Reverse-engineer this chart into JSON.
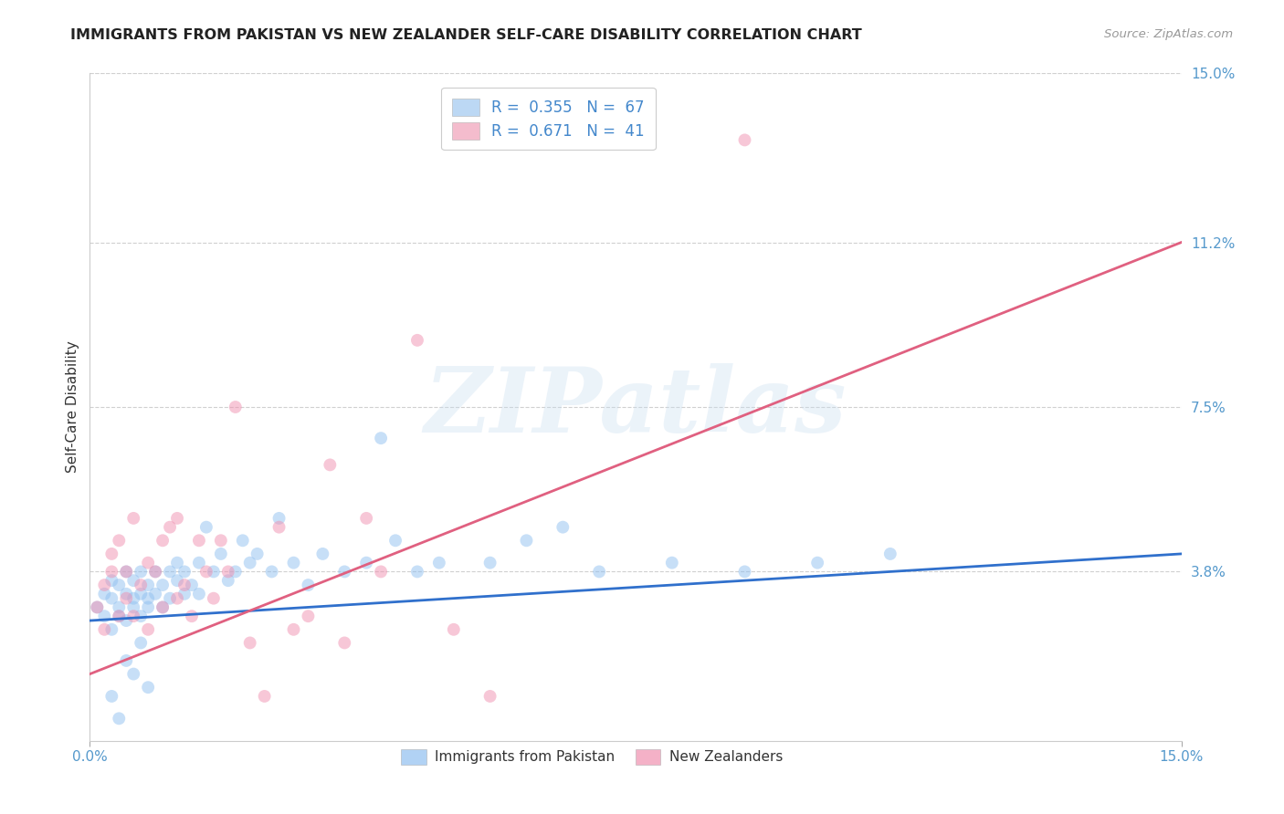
{
  "title": "IMMIGRANTS FROM PAKISTAN VS NEW ZEALANDER SELF-CARE DISABILITY CORRELATION CHART",
  "source": "Source: ZipAtlas.com",
  "ylabel": "Self-Care Disability",
  "xlim": [
    0.0,
    0.15
  ],
  "ylim": [
    0.0,
    0.15
  ],
  "ytick_positions_right": [
    0.038,
    0.075,
    0.112,
    0.15
  ],
  "ytick_labels_right": [
    "3.8%",
    "7.5%",
    "11.2%",
    "15.0%"
  ],
  "grid_color": "#d0d0d0",
  "watermark_text": "ZIPatlas",
  "legend_entries": [
    {
      "label": "Immigrants from Pakistan",
      "color": "#a0c8f0",
      "R": 0.355,
      "N": 67
    },
    {
      "label": "New Zealanders",
      "color": "#f0a0b8",
      "R": 0.671,
      "N": 41
    }
  ],
  "blue_scatter_x": [
    0.001,
    0.002,
    0.002,
    0.003,
    0.003,
    0.003,
    0.004,
    0.004,
    0.004,
    0.005,
    0.005,
    0.005,
    0.006,
    0.006,
    0.006,
    0.007,
    0.007,
    0.007,
    0.008,
    0.008,
    0.008,
    0.009,
    0.009,
    0.01,
    0.01,
    0.011,
    0.011,
    0.012,
    0.012,
    0.013,
    0.013,
    0.014,
    0.015,
    0.015,
    0.016,
    0.017,
    0.018,
    0.019,
    0.02,
    0.021,
    0.022,
    0.023,
    0.025,
    0.026,
    0.028,
    0.03,
    0.032,
    0.035,
    0.038,
    0.04,
    0.042,
    0.045,
    0.048,
    0.055,
    0.06,
    0.065,
    0.07,
    0.08,
    0.09,
    0.1,
    0.11,
    0.003,
    0.004,
    0.005,
    0.006,
    0.007,
    0.008
  ],
  "blue_scatter_y": [
    0.03,
    0.028,
    0.033,
    0.032,
    0.036,
    0.025,
    0.03,
    0.035,
    0.028,
    0.033,
    0.038,
    0.027,
    0.032,
    0.036,
    0.03,
    0.033,
    0.038,
    0.028,
    0.032,
    0.035,
    0.03,
    0.038,
    0.033,
    0.03,
    0.035,
    0.038,
    0.032,
    0.036,
    0.04,
    0.033,
    0.038,
    0.035,
    0.04,
    0.033,
    0.048,
    0.038,
    0.042,
    0.036,
    0.038,
    0.045,
    0.04,
    0.042,
    0.038,
    0.05,
    0.04,
    0.035,
    0.042,
    0.038,
    0.04,
    0.068,
    0.045,
    0.038,
    0.04,
    0.04,
    0.045,
    0.048,
    0.038,
    0.04,
    0.038,
    0.04,
    0.042,
    0.01,
    0.005,
    0.018,
    0.015,
    0.022,
    0.012
  ],
  "pink_scatter_x": [
    0.001,
    0.002,
    0.002,
    0.003,
    0.003,
    0.004,
    0.004,
    0.005,
    0.005,
    0.006,
    0.006,
    0.007,
    0.008,
    0.008,
    0.009,
    0.01,
    0.01,
    0.011,
    0.012,
    0.012,
    0.013,
    0.014,
    0.015,
    0.016,
    0.017,
    0.018,
    0.019,
    0.02,
    0.022,
    0.024,
    0.026,
    0.028,
    0.03,
    0.033,
    0.035,
    0.038,
    0.04,
    0.045,
    0.05,
    0.055,
    0.09
  ],
  "pink_scatter_y": [
    0.03,
    0.035,
    0.025,
    0.038,
    0.042,
    0.028,
    0.045,
    0.032,
    0.038,
    0.05,
    0.028,
    0.035,
    0.04,
    0.025,
    0.038,
    0.045,
    0.03,
    0.048,
    0.032,
    0.05,
    0.035,
    0.028,
    0.045,
    0.038,
    0.032,
    0.045,
    0.038,
    0.075,
    0.022,
    0.01,
    0.048,
    0.025,
    0.028,
    0.062,
    0.022,
    0.05,
    0.038,
    0.09,
    0.025,
    0.01,
    0.135
  ],
  "blue_line_x": [
    0.0,
    0.15
  ],
  "blue_line_y": [
    0.027,
    0.042
  ],
  "pink_line_x": [
    0.0,
    0.15
  ],
  "pink_line_y": [
    0.015,
    0.112
  ],
  "scatter_alpha": 0.5,
  "scatter_size": 100,
  "blue_color": "#90c0f0",
  "pink_color": "#f090b0",
  "blue_line_color": "#3070cc",
  "pink_line_color": "#e06080"
}
